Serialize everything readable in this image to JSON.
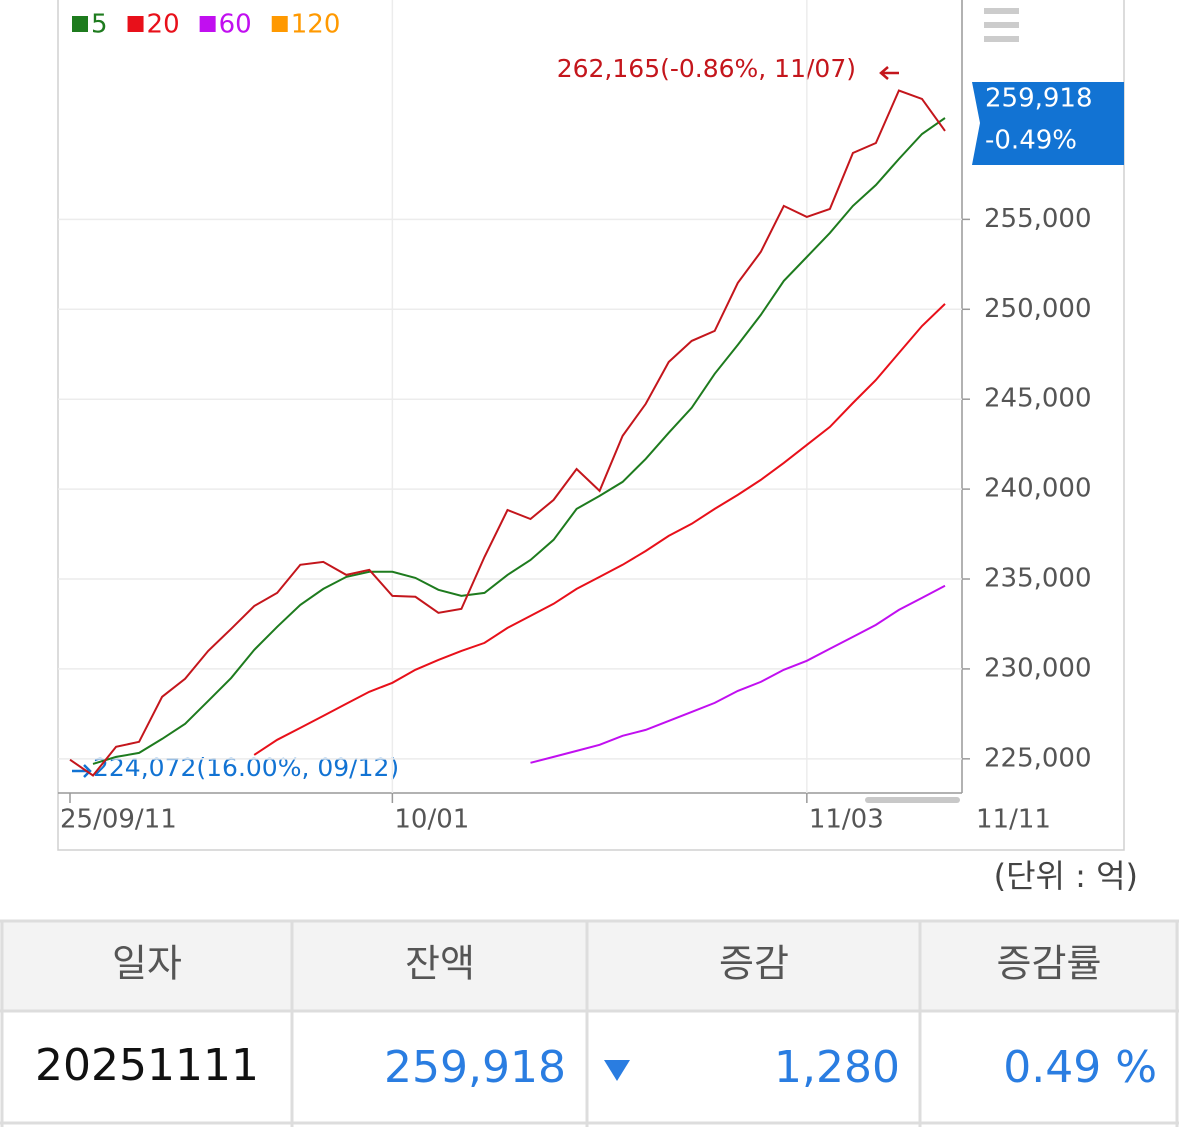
{
  "chart_data": {
    "type": "line",
    "categories": [
      "25/09/11",
      null,
      null,
      null,
      null,
      null,
      null,
      null,
      null,
      null,
      null,
      null,
      null,
      null,
      "10/01",
      null,
      null,
      null,
      null,
      null,
      null,
      null,
      null,
      null,
      null,
      null,
      null,
      null,
      null,
      null,
      null,
      null,
      "11/03",
      null,
      null,
      null,
      null,
      null,
      "11/11"
    ],
    "values": [
      224950,
      224072,
      225670,
      225950,
      228450,
      229450,
      231000,
      232230,
      233500,
      234230,
      235790,
      235950,
      235230,
      235510,
      234060,
      234010,
      233120,
      233340,
      236230,
      238840,
      238340,
      239400,
      241120,
      239900,
      242960,
      244740,
      247070,
      248240,
      248800,
      251470,
      253190,
      255750,
      255140,
      255580,
      258690,
      259250,
      262165,
      261700,
      259918
    ],
    "color": "#c4161c",
    "series": [
      {
        "name": "5",
        "color": "#1e7b1e",
        "values": [
          null,
          224720,
          225110,
          225330,
          226110,
          226950,
          228220,
          229500,
          231060,
          232340,
          233560,
          234450,
          235120,
          235400,
          235400,
          235060,
          234400,
          234060,
          234230,
          235230,
          236060,
          237180,
          238900,
          239620,
          240400,
          241680,
          243130,
          244520,
          246410,
          248020,
          249690,
          251580,
          252910,
          254250,
          255750,
          256910,
          258360,
          259750,
          260640
        ]
      },
      {
        "name": "20",
        "color": "#e8101a",
        "values": [
          null,
          null,
          null,
          null,
          null,
          null,
          null,
          null,
          225220,
          226060,
          226720,
          227390,
          228060,
          228730,
          229230,
          229950,
          230500,
          231000,
          231450,
          232280,
          232950,
          233620,
          234450,
          235120,
          235790,
          236560,
          237400,
          238070,
          238900,
          239680,
          240510,
          241460,
          242460,
          243460,
          244790,
          246070,
          247570,
          249070,
          250300
        ]
      },
      {
        "name": "60",
        "color": "#c10ff0",
        "values": [
          null,
          null,
          null,
          null,
          null,
          null,
          null,
          null,
          null,
          null,
          null,
          null,
          null,
          null,
          null,
          null,
          null,
          null,
          null,
          null,
          224780,
          225110,
          225440,
          225780,
          226280,
          226610,
          227110,
          227610,
          228110,
          228780,
          229280,
          229950,
          230450,
          231120,
          231780,
          232450,
          233280,
          233950,
          234620
        ]
      },
      {
        "name": "120",
        "color": "#ff9900",
        "values": [
          null,
          null,
          null,
          null,
          null,
          null,
          null,
          null,
          null,
          null,
          null,
          null,
          null,
          null,
          null,
          null,
          null,
          null,
          null,
          null,
          null,
          null,
          null,
          null,
          null,
          null,
          null,
          null,
          null,
          null,
          null,
          null,
          null,
          null,
          null,
          null,
          null,
          null,
          null
        ]
      }
    ],
    "ylim": [
      223100,
      267200
    ],
    "yticks": [
      {
        "value": 225000,
        "label": "225,000"
      },
      {
        "value": 230000,
        "label": "230,000"
      },
      {
        "value": 235000,
        "label": "235,000"
      },
      {
        "value": 240000,
        "label": "240,000"
      },
      {
        "value": 245000,
        "label": "245,000"
      },
      {
        "value": 250000,
        "label": "250,000"
      },
      {
        "value": 255000,
        "label": "255,000"
      }
    ],
    "grid": true,
    "max_annotation": "262,165(-0.86%, 11/07)",
    "min_annotation": "224,072(16.00%, 09/12)",
    "price_label": {
      "value": "259,918",
      "change": "-0.49%"
    },
    "unit": "(단위 : 억)"
  },
  "table": {
    "headers": [
      "일자",
      "잔액",
      "증감",
      "증감률"
    ],
    "rows": [
      [
        "20251111",
        "259,918",
        "1,280",
        "0.49 %"
      ]
    ]
  }
}
